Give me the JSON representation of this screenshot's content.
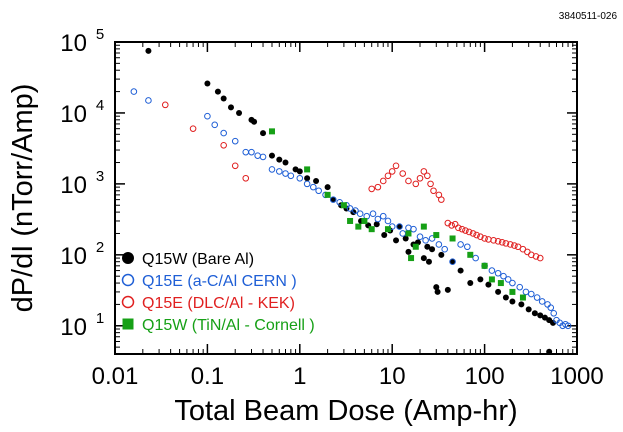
{
  "figure_id": "3840511-026",
  "chart_data": {
    "type": "scatter",
    "xlabel": "Total Beam Dose (Amp-hr)",
    "ylabel": "dP/dI (nTorr/Amp)",
    "x_scale": "log",
    "y_scale": "log",
    "xlim": [
      0.01,
      1000
    ],
    "ylim": [
      4,
      100000
    ],
    "x_ticks": [
      {
        "value": 0.01,
        "label": "0.01"
      },
      {
        "value": 0.1,
        "label": "0.1"
      },
      {
        "value": 1,
        "label": "1"
      },
      {
        "value": 10,
        "label": "10"
      },
      {
        "value": 100,
        "label": "100"
      },
      {
        "value": 1000,
        "label": "1000"
      }
    ],
    "y_ticks": [
      {
        "value": 10,
        "label": "10",
        "exp": "1"
      },
      {
        "value": 100,
        "label": "10",
        "exp": "2"
      },
      {
        "value": 1000,
        "label": "10",
        "exp": "3"
      },
      {
        "value": 10000,
        "label": "10",
        "exp": "4"
      },
      {
        "value": 100000,
        "label": "10",
        "exp": "5"
      }
    ],
    "grid": false,
    "legend_position": "bottom-left",
    "series": [
      {
        "name": "Q15W (Bare Al)",
        "color": "#000000",
        "marker": "filled-circle",
        "points": [
          [
            0.023,
            75000
          ],
          [
            0.1,
            26000
          ],
          [
            0.13,
            20000
          ],
          [
            0.15,
            16000
          ],
          [
            0.18,
            12000
          ],
          [
            0.22,
            10000
          ],
          [
            0.3,
            8000
          ],
          [
            0.32,
            7500
          ],
          [
            0.4,
            5200
          ],
          [
            0.5,
            2500
          ],
          [
            0.6,
            2200
          ],
          [
            0.7,
            2000
          ],
          [
            0.9,
            1600
          ],
          [
            1.0,
            1500
          ],
          [
            1.2,
            1200
          ],
          [
            1.5,
            1100
          ],
          [
            2.0,
            900
          ],
          [
            2.3,
            600
          ],
          [
            2.8,
            500
          ],
          [
            3.2,
            450
          ],
          [
            3.8,
            400
          ],
          [
            4.6,
            300
          ],
          [
            5.5,
            260
          ],
          [
            6.8,
            270
          ],
          [
            8.2,
            190
          ],
          [
            9.5,
            220
          ],
          [
            11,
            160
          ],
          [
            12,
            250
          ],
          [
            14,
            170
          ],
          [
            15,
            110
          ],
          [
            17,
            140
          ],
          [
            19,
            150
          ],
          [
            22,
            90
          ],
          [
            24,
            130
          ],
          [
            25,
            80
          ],
          [
            27,
            120
          ],
          [
            30,
            35
          ],
          [
            31,
            30
          ],
          [
            34,
            100
          ],
          [
            40,
            32
          ],
          [
            45,
            80
          ],
          [
            55,
            60
          ],
          [
            70,
            40
          ],
          [
            90,
            45
          ],
          [
            110,
            38
          ],
          [
            140,
            30
          ],
          [
            170,
            25
          ],
          [
            200,
            22
          ],
          [
            250,
            20
          ],
          [
            300,
            17
          ],
          [
            350,
            15
          ],
          [
            400,
            14
          ],
          [
            450,
            13
          ],
          [
            500,
            12
          ],
          [
            550,
            11
          ],
          [
            500,
            4.3
          ]
        ]
      },
      {
        "name": "Q15E (a-C/Al  CERN )",
        "color": "#1f5fd6",
        "marker": "open-circle",
        "points": [
          [
            0.016,
            20000
          ],
          [
            0.023,
            15000
          ],
          [
            0.1,
            9000
          ],
          [
            0.12,
            6800
          ],
          [
            0.15,
            5200
          ],
          [
            0.2,
            4000
          ],
          [
            0.26,
            2800
          ],
          [
            0.3,
            2800
          ],
          [
            0.35,
            2500
          ],
          [
            0.4,
            2400
          ],
          [
            0.5,
            1600
          ],
          [
            0.6,
            1500
          ],
          [
            0.7,
            1400
          ],
          [
            0.8,
            1300
          ],
          [
            1.0,
            1200
          ],
          [
            1.2,
            1000
          ],
          [
            1.4,
            900
          ],
          [
            1.6,
            800
          ],
          [
            1.9,
            700
          ],
          [
            2.3,
            600
          ],
          [
            2.7,
            550
          ],
          [
            3.2,
            500
          ],
          [
            3.5,
            450
          ],
          [
            4.0,
            420
          ],
          [
            4.5,
            380
          ],
          [
            5.3,
            350
          ],
          [
            6.2,
            380
          ],
          [
            7.0,
            320
          ],
          [
            8.0,
            350
          ],
          [
            9.0,
            300
          ],
          [
            10,
            250
          ],
          [
            12,
            250
          ],
          [
            13,
            200
          ],
          [
            15,
            240
          ],
          [
            17,
            230
          ],
          [
            20,
            180
          ],
          [
            23,
            160
          ],
          [
            27,
            170
          ],
          [
            32,
            140
          ],
          [
            37,
            120
          ],
          [
            45,
            80
          ],
          [
            55,
            140
          ],
          [
            65,
            130
          ],
          [
            80,
            90
          ],
          [
            100,
            70
          ],
          [
            120,
            60
          ],
          [
            140,
            55
          ],
          [
            160,
            50
          ],
          [
            180,
            45
          ],
          [
            200,
            40
          ],
          [
            240,
            35
          ],
          [
            280,
            30
          ],
          [
            320,
            28
          ],
          [
            370,
            25
          ],
          [
            420,
            22
          ],
          [
            480,
            20
          ],
          [
            520,
            18
          ],
          [
            560,
            15
          ],
          [
            600,
            12
          ],
          [
            650,
            11
          ],
          [
            700,
            10
          ],
          [
            750,
            10.5
          ],
          [
            800,
            10
          ]
        ]
      },
      {
        "name": "Q15E (DLC/Al - KEK)",
        "color": "#e02020",
        "marker": "open-circle",
        "points": [
          [
            0.035,
            13000
          ],
          [
            0.07,
            6000
          ],
          [
            0.15,
            3500
          ],
          [
            0.2,
            1800
          ],
          [
            0.26,
            1200
          ],
          [
            6,
            850
          ],
          [
            7,
            900
          ],
          [
            8,
            1100
          ],
          [
            9,
            1300
          ],
          [
            10,
            1500
          ],
          [
            11,
            1800
          ],
          [
            13,
            1400
          ],
          [
            15,
            1100
          ],
          [
            18,
            1000
          ],
          [
            20,
            1200
          ],
          [
            22,
            1500
          ],
          [
            24,
            1300
          ],
          [
            26,
            1000
          ],
          [
            28,
            800
          ],
          [
            32,
            700
          ],
          [
            34,
            600
          ],
          [
            40,
            280
          ],
          [
            44,
            260
          ],
          [
            48,
            270
          ],
          [
            52,
            240
          ],
          [
            57,
            230
          ],
          [
            62,
            220
          ],
          [
            68,
            210
          ],
          [
            75,
            200
          ],
          [
            82,
            190
          ],
          [
            90,
            180
          ],
          [
            100,
            170
          ],
          [
            110,
            165
          ],
          [
            125,
            160
          ],
          [
            140,
            155
          ],
          [
            155,
            150
          ],
          [
            170,
            145
          ],
          [
            190,
            140
          ],
          [
            210,
            135
          ],
          [
            230,
            130
          ],
          [
            260,
            120
          ],
          [
            290,
            110
          ],
          [
            320,
            100
          ],
          [
            360,
            95
          ],
          [
            400,
            90
          ]
        ]
      },
      {
        "name": "Q15W (TiN/Al - Cornell )",
        "color": "#16a016",
        "marker": "filled-square",
        "points": [
          [
            0.5,
            5500
          ],
          [
            1.2,
            1600
          ],
          [
            2.0,
            700
          ],
          [
            3.0,
            500
          ],
          [
            3.5,
            300
          ],
          [
            4.3,
            250
          ],
          [
            5.0,
            300
          ],
          [
            6.0,
            230
          ],
          [
            9.0,
            230
          ],
          [
            15,
            200
          ],
          [
            16,
            90
          ],
          [
            18,
            130
          ],
          [
            22,
            250
          ],
          [
            30,
            190
          ],
          [
            45,
            170
          ],
          [
            70,
            100
          ],
          [
            100,
            70
          ],
          [
            120,
            45
          ],
          [
            150,
            40
          ],
          [
            200,
            30
          ],
          [
            260,
            25
          ]
        ]
      }
    ]
  }
}
